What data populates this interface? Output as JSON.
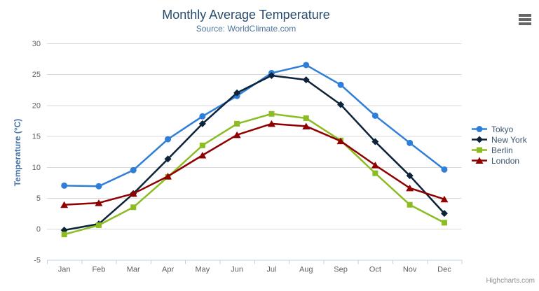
{
  "page": {
    "credits": "Highcharts.com"
  },
  "chart_data": {
    "type": "line",
    "title": "Monthly Average Temperature",
    "subtitle": "Source: WorldClimate.com",
    "xlabel": "",
    "ylabel": "Temperature (°C)",
    "categories": [
      "Jan",
      "Feb",
      "Mar",
      "Apr",
      "May",
      "Jun",
      "Jul",
      "Aug",
      "Sep",
      "Oct",
      "Nov",
      "Dec"
    ],
    "yticks": [
      30,
      25,
      20,
      15,
      10,
      5,
      0,
      -5
    ],
    "ylim": [
      -5,
      30
    ],
    "grid": "horizontal",
    "legend_position": "right",
    "axis_line_color": "#C0D0E0",
    "grid_color": "#D8D8D8",
    "tick_label_color": "#606060",
    "series": [
      {
        "name": "Tokyo",
        "color": "#2f7ed8",
        "marker": "circle",
        "values": [
          7.0,
          6.9,
          9.5,
          14.5,
          18.2,
          21.5,
          25.2,
          26.5,
          23.3,
          18.3,
          13.9,
          9.6
        ]
      },
      {
        "name": "New York",
        "color": "#0d233a",
        "marker": "diamond",
        "values": [
          -0.2,
          0.8,
          5.7,
          11.3,
          17.0,
          22.0,
          24.8,
          24.1,
          20.1,
          14.1,
          8.6,
          2.5
        ]
      },
      {
        "name": "Berlin",
        "color": "#8bbc21",
        "marker": "square",
        "values": [
          -0.9,
          0.6,
          3.5,
          8.4,
          13.5,
          17.0,
          18.6,
          17.9,
          14.3,
          9.0,
          3.9,
          1.0
        ]
      },
      {
        "name": "London",
        "color": "#910000",
        "marker": "triangle",
        "values": [
          3.9,
          4.2,
          5.7,
          8.5,
          11.9,
          15.2,
          17.0,
          16.6,
          14.2,
          10.3,
          6.6,
          4.8
        ]
      }
    ]
  }
}
